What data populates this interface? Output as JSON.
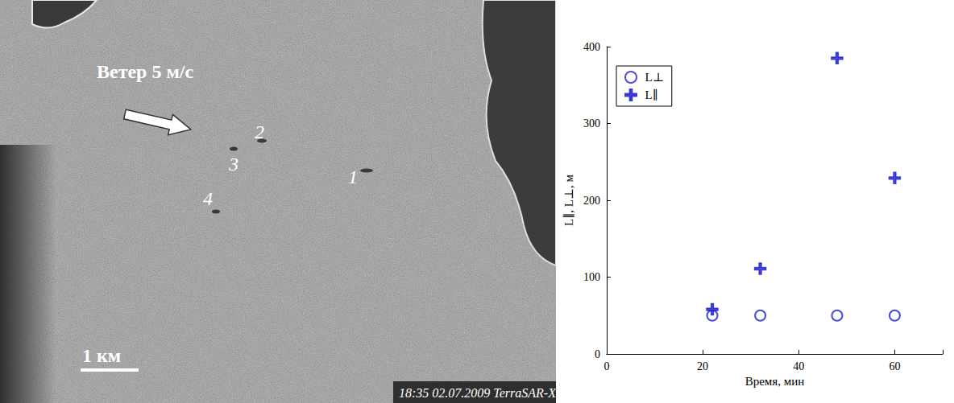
{
  "image_panel": {
    "wind_label": "Ветер 5 м/с",
    "slick_labels": [
      "1",
      "2",
      "3",
      "4"
    ],
    "scale_label": "1 км",
    "caption": "18:35 02.07.2009 TerraSAR-X"
  },
  "chart_data": {
    "type": "scatter",
    "x_label": "Время, мин",
    "y_label": "L∥, L⊥, м",
    "xlim": [
      0,
      70
    ],
    "xticks": [
      0,
      20,
      40,
      60
    ],
    "ylim": [
      0,
      400
    ],
    "yticks": [
      0,
      100,
      200,
      300,
      400
    ],
    "grid": false,
    "legend": "upper left",
    "series": [
      {
        "name": "L⊥",
        "color": "#1f1fd0",
        "marker": "circle",
        "x": [
          22,
          32,
          48,
          60
        ],
        "values": [
          50,
          50,
          50,
          50
        ]
      },
      {
        "name": "L∥",
        "color": "#1f1fd0",
        "marker": "cross",
        "x": [
          22,
          32,
          48,
          60
        ],
        "values": [
          58,
          111,
          385,
          229
        ]
      }
    ]
  }
}
